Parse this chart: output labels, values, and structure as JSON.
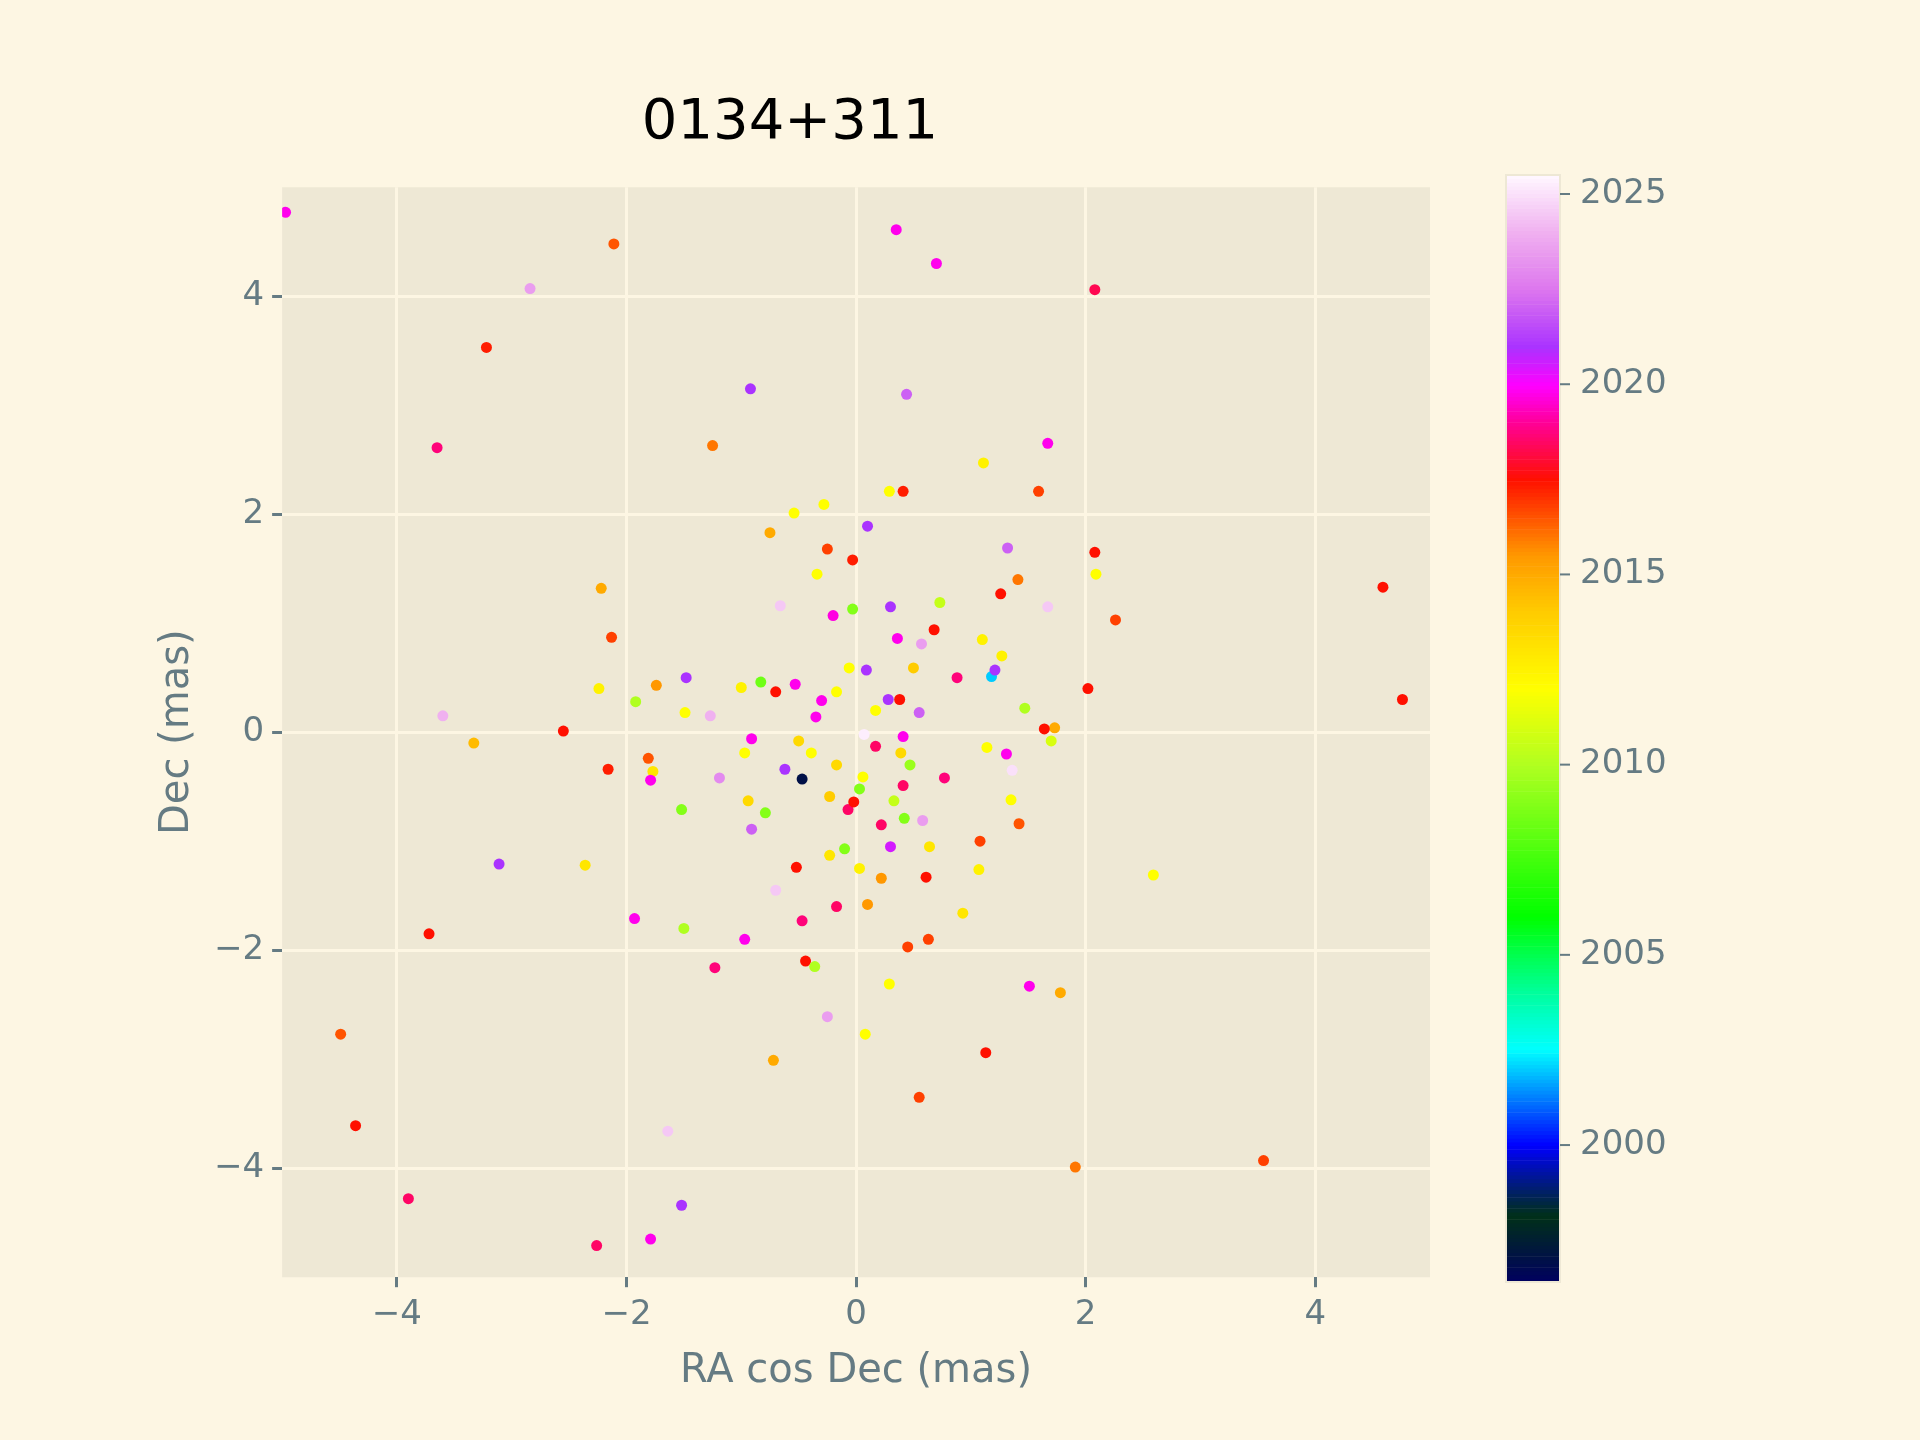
{
  "chart_data": {
    "type": "scatter",
    "title": "0134+311",
    "xlabel": "RA cos Dec (mas)",
    "ylabel": "Dec (mas)",
    "clabel": null,
    "xlim": [
      -5,
      5
    ],
    "ylim": [
      -5,
      5
    ],
    "xticks": [
      -4,
      -2,
      0,
      2,
      4
    ],
    "yticks": [
      -4,
      -2,
      0,
      2,
      4
    ],
    "clim": [
      1996.4,
      2025.5
    ],
    "cticks": [
      2000,
      2005,
      2010,
      2015,
      2020,
      2025
    ],
    "grid": true,
    "legend": false,
    "marker": "circle",
    "x": [
      -4.97,
      -2.11,
      -2.84,
      -3.22,
      -3.65,
      0.35,
      0.7,
      2.08,
      -0.92,
      0.44,
      -1.25,
      1.67,
      0.41,
      0.29,
      1.11,
      1.59,
      -0.28,
      -0.54,
      -0.75,
      -0.25,
      -0.03,
      0.1,
      1.32,
      2.08,
      2.09,
      1.41,
      1.26,
      2.26,
      1.67,
      -0.34,
      -2.22,
      -2.13,
      -2.24,
      -1.74,
      -1.92,
      -1.48,
      -1.49,
      -3.6,
      -3.33,
      -2.55,
      -1.81,
      -1.77,
      -2.16,
      -1.79,
      -3.11,
      -2.36,
      -3.72,
      -1.93,
      -1.52,
      -1.5,
      -0.97,
      -1.23,
      -0.52,
      -0.47,
      -0.17,
      -0.44,
      -0.36,
      -0.72,
      -0.25,
      0.08,
      0.1,
      0.29,
      0.45,
      0.63,
      0.93,
      0.61,
      0.22,
      0.3,
      0.64,
      1.07,
      1.08,
      1.42,
      1.35,
      1.31,
      1.36,
      1.14,
      1.7,
      1.73,
      1.64,
      2.02,
      1.47,
      1.18,
      1.21,
      1.27,
      1.1,
      0.88,
      2.59,
      1.51,
      1.78,
      1.13,
      0.55,
      1.91,
      3.55,
      4.59,
      4.76,
      -4.49,
      -4.36,
      -3.9,
      -2.26,
      -1.79,
      -1.52,
      -1.64,
      -0.66,
      -0.2,
      0.3,
      -0.03,
      0.68,
      0.73,
      0.57,
      0.36,
      -1.27,
      -1.19,
      -0.91,
      -0.91,
      -0.7,
      -0.79,
      -1.0,
      -0.83,
      -0.53,
      -0.7,
      -0.3,
      -0.47,
      -0.62,
      -0.07,
      -0.02,
      0.22,
      0.58,
      0.77,
      0.41,
      0.07,
      0.09,
      0.28,
      0.38,
      0.55,
      0.41,
      0.17,
      -0.35,
      0.03,
      -0.17,
      0.06,
      -0.39,
      0.17,
      0.39,
      -0.17,
      0.5,
      -0.06,
      -0.5,
      -0.23,
      0.33,
      0.47,
      -0.94,
      -0.97,
      -0.1,
      0.03,
      -0.23,
      0.42
    ],
    "values": [
      4.77,
      4.48,
      4.07,
      3.53,
      2.61,
      4.61,
      4.3,
      4.06,
      3.15,
      3.1,
      2.63,
      2.65,
      2.21,
      2.21,
      2.47,
      2.21,
      2.09,
      2.01,
      1.83,
      1.68,
      1.58,
      1.89,
      1.69,
      1.65,
      1.45,
      1.4,
      1.27,
      1.03,
      1.15,
      1.45,
      1.32,
      0.87,
      0.4,
      0.43,
      0.28,
      0.5,
      0.18,
      0.15,
      -0.1,
      0.01,
      -0.24,
      -0.36,
      -0.34,
      -0.44,
      -1.21,
      -1.22,
      -1.85,
      -1.71,
      -0.71,
      -1.8,
      -1.9,
      -2.16,
      -1.24,
      -1.73,
      -1.6,
      -2.1,
      -2.15,
      -3.01,
      -2.61,
      -2.77,
      -1.58,
      -2.31,
      -1.97,
      -1.9,
      -1.66,
      -1.33,
      -1.34,
      -1.05,
      -1.05,
      -1.26,
      -1.0,
      -0.84,
      -0.62,
      -0.2,
      -0.35,
      -0.14,
      -0.08,
      0.04,
      0.03,
      0.4,
      0.22,
      0.51,
      0.57,
      0.7,
      0.85,
      0.5,
      -1.31,
      -2.33,
      -2.39,
      -2.94,
      -3.35,
      -3.99,
      -3.93,
      1.33,
      0.3,
      -2.77,
      -3.61,
      -4.28,
      -4.71,
      -4.65,
      -4.34,
      -3.66,
      1.16,
      1.07,
      1.15,
      1.13,
      0.94,
      1.19,
      0.81,
      0.86,
      0.15,
      -0.42,
      -0.06,
      -0.89,
      -1.45,
      -0.74,
      0.41,
      0.46,
      0.44,
      0.37,
      0.29,
      -0.43,
      -0.34,
      -0.71,
      -0.64,
      -0.85,
      -0.81,
      -0.42,
      -0.49,
      -0.02,
      0.57,
      0.3,
      0.3,
      0.18,
      -0.04,
      -0.13,
      0.14,
      -0.52,
      -0.3,
      -0.41,
      -0.19,
      0.2,
      -0.19,
      0.37,
      0.59,
      0.59,
      -0.08,
      -0.59,
      -0.63,
      -0.3,
      -0.63,
      -0.19,
      -1.07,
      -1.25,
      -1.13,
      -0.79
    ],
    "cvalues": [
      2019.8,
      2016.5,
      2023.5,
      2017.3,
      2018.7,
      2019.8,
      2019.8,
      2018.3,
      2021,
      2022,
      2016,
      2019.8,
      2017.3,
      2012,
      2012.5,
      2016.8,
      2012,
      2012,
      2015,
      2016.8,
      2017.3,
      2021,
      2022,
      2017.5,
      2012,
      2016,
      2017.5,
      2016.8,
      2024.5,
      2012,
      2015,
      2016.8,
      2012.5,
      2015.5,
      2010,
      2021,
      2012,
      2024,
      2014.5,
      2017.5,
      2016.5,
      2013,
      2017.3,
      2019.8,
      2021,
      2013,
      2017.5,
      2019.8,
      2009,
      2010,
      2019.8,
      2018.7,
      2017.5,
      2018.7,
      2018.5,
      2017.5,
      2010,
      2015,
      2023.5,
      2012,
      2015.5,
      2012,
      2016.8,
      2016.8,
      2013,
      2017.5,
      2015.5,
      2020.5,
      2013,
      2012.5,
      2016.8,
      2016.5,
      2012,
      2019.8,
      2025,
      2012,
      2011,
      2015,
      2017.5,
      2017.5,
      2010,
      2002,
      2021,
      2012.5,
      2012.5,
      2018.7,
      2012,
      2019.8,
      2015,
      2017.5,
      2016.8,
      2016,
      2016.8,
      2017.5,
      2017.5,
      2016.5,
      2017.5,
      2018.5,
      2018.5,
      2019.8,
      2021,
      2024.5,
      2024.5,
      2019.7,
      2021,
      2009,
      2017.5,
      2010.5,
      2023.5,
      2019.8,
      2024,
      2023,
      2019.8,
      2022,
      2024.5,
      2009,
      2012.5,
      2008.5,
      2019.8,
      2017.5,
      2019.8,
      1997,
      2021,
      2018.5,
      2017.5,
      2018.5,
      2023.5,
      2018.7,
      2018.5,
      2025.3,
      2021,
      2021,
      2017.5,
      2022,
      2019.8,
      2018.5,
      2019.8,
      2009,
      2013.5,
      2012,
      2012,
      2012,
      2013.5,
      2012,
      2014,
      2012,
      2013.5,
      2014,
      2010.5,
      2009.5,
      2013.5,
      2012,
      2009,
      2012.5,
      2013,
      2009
    ]
  }
}
